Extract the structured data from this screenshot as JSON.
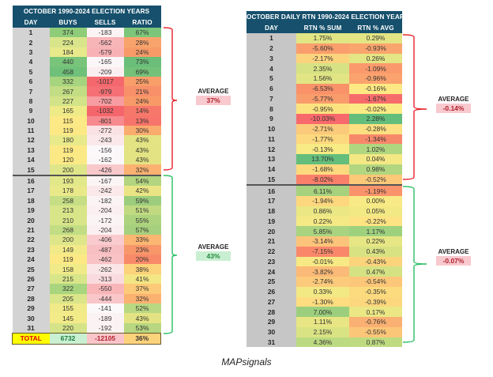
{
  "left_table": {
    "title": "OCTOBER 1990-2024 ELECTION YEARS",
    "headers": [
      "DAY",
      "BUYS",
      "SELLS",
      "RATIO"
    ],
    "rows": [
      {
        "day": "1",
        "buys": "374",
        "sells": "-183",
        "ratio": "67%",
        "c": [
          "#8fcc7a",
          "#fbf3f4",
          "#7bc67a"
        ]
      },
      {
        "day": "2",
        "buys": "224",
        "sells": "-562",
        "ratio": "28%",
        "c": [
          "#d8e58a",
          "#f8b5b8",
          "#f9a36c"
        ]
      },
      {
        "day": "3",
        "buys": "184",
        "sells": "-579",
        "ratio": "24%",
        "c": [
          "#e7e98a",
          "#f8b2b5",
          "#f89a68"
        ]
      },
      {
        "day": "4",
        "buys": "440",
        "sells": "-165",
        "ratio": "73%",
        "c": [
          "#78c47a",
          "#fbf6f7",
          "#6abe79"
        ]
      },
      {
        "day": "5",
        "buys": "458",
        "sells": "-209",
        "ratio": "69%",
        "c": [
          "#6fc079",
          "#fbeef0",
          "#74c279"
        ]
      },
      {
        "day": "6",
        "buys": "332",
        "sells": "-1017",
        "ratio": "25%",
        "c": [
          "#a7d47e",
          "#f4686d",
          "#f99d69"
        ]
      },
      {
        "day": "7",
        "buys": "267",
        "sells": "-979",
        "ratio": "21%",
        "c": [
          "#c2dd84",
          "#f56f74",
          "#f8906a"
        ]
      },
      {
        "day": "8",
        "buys": "227",
        "sells": "-702",
        "ratio": "24%",
        "c": [
          "#d3e388",
          "#f79ca0",
          "#f89a68"
        ]
      },
      {
        "day": "9",
        "buys": "165",
        "sells": "-1032",
        "ratio": "14%",
        "c": [
          "#eeea88",
          "#f4666b",
          "#f7786a"
        ]
      },
      {
        "day": "10",
        "buys": "115",
        "sells": "-801",
        "ratio": "13%",
        "c": [
          "#fde985",
          "#f68a8f",
          "#f7746a"
        ]
      },
      {
        "day": "11",
        "buys": "119",
        "sells": "-272",
        "ratio": "30%",
        "c": [
          "#fce985",
          "#fae2e4",
          "#faab6e"
        ]
      },
      {
        "day": "12",
        "buys": "180",
        "sells": "-243",
        "ratio": "43%",
        "c": [
          "#e8e98a",
          "#fae8ea",
          "#e3e383"
        ]
      },
      {
        "day": "13",
        "buys": "119",
        "sells": "-156",
        "ratio": "43%",
        "c": [
          "#fce985",
          "#fbf8f9",
          "#e3e383"
        ]
      },
      {
        "day": "14",
        "buys": "120",
        "sells": "-162",
        "ratio": "43%",
        "c": [
          "#fbe985",
          "#fbf7f8",
          "#e3e383"
        ]
      },
      {
        "day": "15",
        "buys": "200",
        "sells": "-426",
        "ratio": "32%",
        "c": [
          "#dfe68a",
          "#f9c8cb",
          "#fbb271"
        ]
      },
      {
        "day": "16",
        "buys": "193",
        "sells": "-167",
        "ratio": "54%",
        "c": [
          "#e2e78a",
          "#fbf5f6",
          "#b3d57f"
        ]
      },
      {
        "day": "17",
        "buys": "178",
        "sells": "-242",
        "ratio": "42%",
        "c": [
          "#e9e98a",
          "#fae8ea",
          "#ebe484"
        ]
      },
      {
        "day": "18",
        "buys": "258",
        "sells": "-182",
        "ratio": "59%",
        "c": [
          "#c6de85",
          "#fbf3f4",
          "#9ccd7d"
        ]
      },
      {
        "day": "19",
        "buys": "213",
        "sells": "-204",
        "ratio": "51%",
        "c": [
          "#d8e589",
          "#fbeff1",
          "#c1da81"
        ]
      },
      {
        "day": "20",
        "buys": "210",
        "sells": "-172",
        "ratio": "55%",
        "c": [
          "#d9e589",
          "#fbf4f5",
          "#aed37e"
        ]
      },
      {
        "day": "21",
        "buys": "268",
        "sells": "-204",
        "ratio": "57%",
        "c": [
          "#c2dd84",
          "#fbeff1",
          "#a6d07d"
        ]
      },
      {
        "day": "22",
        "buys": "200",
        "sells": "-406",
        "ratio": "33%",
        "c": [
          "#dfe68a",
          "#f9cbce",
          "#fbb672"
        ]
      },
      {
        "day": "23",
        "buys": "149",
        "sells": "-487",
        "ratio": "23%",
        "c": [
          "#f2ea88",
          "#f8bfc2",
          "#f8966a"
        ]
      },
      {
        "day": "24",
        "buys": "119",
        "sells": "-462",
        "ratio": "20%",
        "c": [
          "#fce985",
          "#f9c3c6",
          "#f88a69"
        ]
      },
      {
        "day": "25",
        "buys": "158",
        "sells": "-262",
        "ratio": "38%",
        "c": [
          "#f0ea88",
          "#fae5e7",
          "#fcd27b"
        ]
      },
      {
        "day": "26",
        "buys": "215",
        "sells": "-313",
        "ratio": "41%",
        "c": [
          "#d8e589",
          "#fadbdd",
          "#f3e684"
        ]
      },
      {
        "day": "27",
        "buys": "322",
        "sells": "-550",
        "ratio": "37%",
        "c": [
          "#a9d57f",
          "#f8b6b9",
          "#fcca78"
        ]
      },
      {
        "day": "28",
        "buys": "205",
        "sells": "-444",
        "ratio": "32%",
        "c": [
          "#dbe589",
          "#f9c6c9",
          "#fbb271"
        ]
      },
      {
        "day": "29",
        "buys": "155",
        "sells": "-141",
        "ratio": "52%",
        "c": [
          "#f0ea88",
          "#fbf9fa",
          "#bad882"
        ]
      },
      {
        "day": "30",
        "buys": "145",
        "sells": "-189",
        "ratio": "43%",
        "c": [
          "#f3ea88",
          "#fbf2f3",
          "#e3e383"
        ]
      },
      {
        "day": "31",
        "buys": "220",
        "sells": "-192",
        "ratio": "53%",
        "c": [
          "#d6e489",
          "#fbf2f3",
          "#b7d780"
        ]
      }
    ],
    "total": {
      "label": "TOTAL",
      "buys": "6732",
      "sells": "-12105",
      "ratio": "36%",
      "c": [
        "#c9f0d3",
        "#f9c5cb",
        "#fcd27b"
      ],
      "tc": [
        "#1f7a3a",
        "#b0202a",
        "#333333"
      ]
    },
    "averages": [
      {
        "label": "AVERAGE",
        "value": "37%",
        "tone": "red"
      },
      {
        "label": "AVERAGE",
        "value": "43%",
        "tone": "green"
      }
    ]
  },
  "right_table": {
    "title": "OCTOBER DAILY RTN 1990-2024 ELECTION YEARS",
    "headers": [
      "DAY",
      "RTN % SUM",
      "RTN % AVG"
    ],
    "rows": [
      {
        "day": "1",
        "sum": "1.75%",
        "avg": "0.29%",
        "c": [
          "#e1e584",
          "#e3e584"
        ]
      },
      {
        "day": "2",
        "sum": "-5.60%",
        "avg": "-0.93%",
        "c": [
          "#f99e6c",
          "#fba56e"
        ]
      },
      {
        "day": "3",
        "sum": "-2.17%",
        "avg": "0.26%",
        "c": [
          "#fdd47e",
          "#e4e584"
        ]
      },
      {
        "day": "4",
        "sum": "2.35%",
        "avg": "-1.09%",
        "c": [
          "#d6e283",
          "#fa9a6c"
        ]
      },
      {
        "day": "5",
        "sum": "1.56%",
        "avg": "-0.96%",
        "c": [
          "#e2e584",
          "#fba36e"
        ]
      },
      {
        "day": "6",
        "sum": "-6.53%",
        "avg": "-0.16%",
        "c": [
          "#f99169",
          "#fde883"
        ]
      },
      {
        "day": "7",
        "sum": "-5.77%",
        "avg": "-1.67%",
        "c": [
          "#f99c6b",
          "#f66c6b"
        ]
      },
      {
        "day": "8",
        "sum": "-0.95%",
        "avg": "-0.02%",
        "c": [
          "#fde37f",
          "#fceb84"
        ]
      },
      {
        "day": "9",
        "sum": "-10.03%",
        "avg": "2.28%",
        "c": [
          "#f8696b",
          "#63be7b"
        ]
      },
      {
        "day": "10",
        "sum": "-2.71%",
        "avg": "-0.28%",
        "c": [
          "#fcca7b",
          "#fde081"
        ]
      },
      {
        "day": "11",
        "sum": "-1.77%",
        "avg": "-1.34%",
        "c": [
          "#fdd87e",
          "#f8886a"
        ]
      },
      {
        "day": "12",
        "sum": "-0.13%",
        "avg": "1.02%",
        "c": [
          "#f8ea84",
          "#b0d67f"
        ]
      },
      {
        "day": "13",
        "sum": "13.70%",
        "avg": "0.04%",
        "c": [
          "#63be7b",
          "#f3e884"
        ]
      },
      {
        "day": "14",
        "sum": "-1.68%",
        "avg": "0.98%",
        "c": [
          "#fdd97e",
          "#b3d680"
        ]
      },
      {
        "day": "15",
        "sum": "-8.02%",
        "avg": "-0.52%",
        "c": [
          "#f97f6a",
          "#fcc979"
        ]
      },
      {
        "day": "16",
        "sum": "6.11%",
        "avg": "-1.19%",
        "c": [
          "#a6d27e",
          "#f9936b"
        ]
      },
      {
        "day": "17",
        "sum": "-1.94%",
        "avg": "0.00%",
        "c": [
          "#fdd77e",
          "#f8ea84"
        ]
      },
      {
        "day": "18",
        "sum": "0.86%",
        "avg": "0.05%",
        "c": [
          "#ebe784",
          "#f2e884"
        ]
      },
      {
        "day": "19",
        "sum": "0.22%",
        "avg": "-0.22%",
        "c": [
          "#f4e984",
          "#fde382"
        ]
      },
      {
        "day": "20",
        "sum": "5.85%",
        "avg": "1.17%",
        "c": [
          "#aad37f",
          "#9ed17e"
        ]
      },
      {
        "day": "21",
        "sum": "-3.14%",
        "avg": "0.22%",
        "c": [
          "#fcc47a",
          "#e6e684"
        ]
      },
      {
        "day": "22",
        "sum": "-7.15%",
        "avg": "0.43%",
        "c": [
          "#f9886a",
          "#d8e283"
        ]
      },
      {
        "day": "23",
        "sum": "-0.01%",
        "avg": "-0.43%",
        "c": [
          "#f7e984",
          "#fcd47c"
        ]
      },
      {
        "day": "24",
        "sum": "-3.82%",
        "avg": "0.47%",
        "c": [
          "#fbba77",
          "#d5e283"
        ]
      },
      {
        "day": "25",
        "sum": "-2.74%",
        "avg": "-0.54%",
        "c": [
          "#fcca7b",
          "#fcc779"
        ]
      },
      {
        "day": "26",
        "sum": "0.33%",
        "avg": "-0.35%",
        "c": [
          "#f2e884",
          "#fcdb7f"
        ]
      },
      {
        "day": "27",
        "sum": "-1.30%",
        "avg": "-0.39%",
        "c": [
          "#fddd80",
          "#fcd77e"
        ]
      },
      {
        "day": "28",
        "sum": "7.00%",
        "avg": "0.17%",
        "c": [
          "#9ccf7d",
          "#eae784"
        ]
      },
      {
        "day": "29",
        "sum": "1.11%",
        "avg": "-0.76%",
        "c": [
          "#e8e684",
          "#fbb073"
        ]
      },
      {
        "day": "30",
        "sum": "2.15%",
        "avg": "-0.55%",
        "c": [
          "#d9e383",
          "#fcc679"
        ]
      },
      {
        "day": "31",
        "sum": "4.36%",
        "avg": "0.87%",
        "c": [
          "#bcda81",
          "#bedb81"
        ]
      }
    ],
    "averages": [
      {
        "label": "AVERAGE",
        "value": "-0.14%",
        "tone": "red"
      },
      {
        "label": "AVERAGE",
        "value": "-0.07%",
        "tone": "red"
      }
    ]
  },
  "colors": {
    "header_bg": "#16506c",
    "bracket_first_half": "#e8232b",
    "bracket_second_half": "#2bbf63"
  },
  "footer": "MAPsignals"
}
